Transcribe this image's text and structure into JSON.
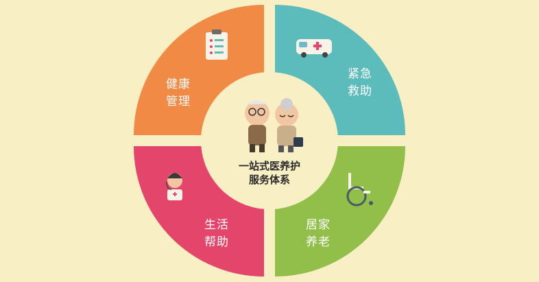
{
  "center": {
    "line1": "一站式医养护",
    "line2": "服务体系"
  },
  "quadrants": [
    {
      "id": "health",
      "line1": "健康",
      "line2": "管理",
      "color": "#f08a45",
      "icon": "clipboard-icon"
    },
    {
      "id": "emergency",
      "line1": "紧急",
      "line2": "救助",
      "color": "#5cbcbb",
      "icon": "ambulance-icon"
    },
    {
      "id": "life",
      "line1": "生活",
      "line2": "帮助",
      "color": "#e4456a",
      "icon": "nurse-icon"
    },
    {
      "id": "homecare",
      "line1": "居家",
      "line2": "养老",
      "color": "#92be4a",
      "icon": "wheelchair-icon"
    }
  ],
  "colors": {
    "background": "#f8efc4",
    "center_fill": "#f8efc4"
  }
}
